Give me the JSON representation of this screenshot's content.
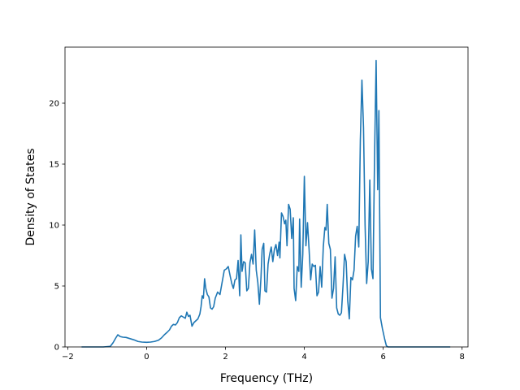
{
  "chart_data": {
    "type": "line",
    "title": "",
    "xlabel": "Frequency (THz)",
    "ylabel": "Density of States",
    "xlim": [
      -2.07,
      8.15
    ],
    "ylim": [
      0,
      24.6
    ],
    "xticks": [
      -2,
      0,
      2,
      4,
      6,
      8
    ],
    "yticks": [
      0,
      5,
      10,
      15,
      20
    ],
    "grid": false,
    "legend": "none",
    "series": [
      {
        "color": "#1f77b4",
        "points": [
          [
            -1.65,
            0.0
          ],
          [
            -1.1,
            0.0
          ],
          [
            -0.92,
            0.05
          ],
          [
            -0.85,
            0.35
          ],
          [
            -0.78,
            0.75
          ],
          [
            -0.73,
            1.0
          ],
          [
            -0.67,
            0.85
          ],
          [
            -0.6,
            0.8
          ],
          [
            -0.52,
            0.78
          ],
          [
            -0.42,
            0.68
          ],
          [
            -0.32,
            0.58
          ],
          [
            -0.22,
            0.45
          ],
          [
            -0.12,
            0.4
          ],
          [
            0.0,
            0.38
          ],
          [
            0.1,
            0.4
          ],
          [
            0.2,
            0.45
          ],
          [
            0.3,
            0.55
          ],
          [
            0.38,
            0.75
          ],
          [
            0.45,
            1.0
          ],
          [
            0.52,
            1.2
          ],
          [
            0.58,
            1.4
          ],
          [
            0.63,
            1.7
          ],
          [
            0.68,
            1.85
          ],
          [
            0.73,
            1.8
          ],
          [
            0.78,
            2.0
          ],
          [
            0.83,
            2.4
          ],
          [
            0.88,
            2.55
          ],
          [
            0.93,
            2.45
          ],
          [
            0.98,
            2.35
          ],
          [
            1.02,
            2.85
          ],
          [
            1.06,
            2.5
          ],
          [
            1.1,
            2.6
          ],
          [
            1.15,
            1.7
          ],
          [
            1.2,
            2.0
          ],
          [
            1.25,
            2.15
          ],
          [
            1.3,
            2.3
          ],
          [
            1.35,
            2.7
          ],
          [
            1.38,
            3.3
          ],
          [
            1.41,
            4.2
          ],
          [
            1.44,
            4.0
          ],
          [
            1.47,
            5.6
          ],
          [
            1.5,
            4.8
          ],
          [
            1.54,
            4.3
          ],
          [
            1.58,
            4.1
          ],
          [
            1.62,
            3.2
          ],
          [
            1.66,
            3.1
          ],
          [
            1.7,
            3.3
          ],
          [
            1.74,
            4.0
          ],
          [
            1.8,
            4.5
          ],
          [
            1.86,
            4.3
          ],
          [
            1.92,
            5.4
          ],
          [
            1.97,
            6.3
          ],
          [
            2.02,
            6.4
          ],
          [
            2.07,
            6.6
          ],
          [
            2.12,
            5.8
          ],
          [
            2.16,
            5.2
          ],
          [
            2.2,
            4.8
          ],
          [
            2.24,
            5.5
          ],
          [
            2.28,
            5.6
          ],
          [
            2.32,
            7.1
          ],
          [
            2.36,
            4.2
          ],
          [
            2.39,
            9.2
          ],
          [
            2.42,
            6.2
          ],
          [
            2.46,
            7.0
          ],
          [
            2.5,
            6.9
          ],
          [
            2.54,
            4.6
          ],
          [
            2.58,
            4.8
          ],
          [
            2.62,
            6.9
          ],
          [
            2.66,
            7.6
          ],
          [
            2.7,
            6.8
          ],
          [
            2.74,
            9.6
          ],
          [
            2.78,
            6.3
          ],
          [
            2.82,
            5.3
          ],
          [
            2.86,
            3.5
          ],
          [
            2.9,
            5.7
          ],
          [
            2.93,
            8.0
          ],
          [
            2.97,
            8.5
          ],
          [
            3.0,
            4.6
          ],
          [
            3.04,
            4.5
          ],
          [
            3.08,
            6.8
          ],
          [
            3.12,
            7.6
          ],
          [
            3.16,
            8.2
          ],
          [
            3.2,
            7.0
          ],
          [
            3.24,
            8.0
          ],
          [
            3.28,
            8.4
          ],
          [
            3.32,
            7.5
          ],
          [
            3.36,
            8.6
          ],
          [
            3.38,
            7.3
          ],
          [
            3.42,
            11.0
          ],
          [
            3.46,
            10.7
          ],
          [
            3.5,
            10.1
          ],
          [
            3.53,
            10.4
          ],
          [
            3.56,
            8.3
          ],
          [
            3.6,
            11.7
          ],
          [
            3.64,
            11.3
          ],
          [
            3.68,
            8.9
          ],
          [
            3.72,
            10.6
          ],
          [
            3.74,
            4.8
          ],
          [
            3.78,
            3.8
          ],
          [
            3.82,
            6.6
          ],
          [
            3.86,
            6.2
          ],
          [
            3.88,
            10.5
          ],
          [
            3.92,
            4.9
          ],
          [
            3.96,
            7.6
          ],
          [
            4.0,
            14.0
          ],
          [
            4.04,
            8.3
          ],
          [
            4.08,
            10.2
          ],
          [
            4.12,
            8.0
          ],
          [
            4.16,
            5.5
          ],
          [
            4.2,
            6.8
          ],
          [
            4.24,
            6.6
          ],
          [
            4.28,
            6.7
          ],
          [
            4.32,
            4.2
          ],
          [
            4.36,
            4.5
          ],
          [
            4.4,
            6.6
          ],
          [
            4.44,
            4.9
          ],
          [
            4.48,
            8.2
          ],
          [
            4.52,
            9.8
          ],
          [
            4.55,
            9.6
          ],
          [
            4.58,
            11.7
          ],
          [
            4.62,
            8.5
          ],
          [
            4.66,
            8.0
          ],
          [
            4.7,
            4.0
          ],
          [
            4.74,
            4.8
          ],
          [
            4.78,
            7.4
          ],
          [
            4.82,
            3.2
          ],
          [
            4.86,
            2.7
          ],
          [
            4.9,
            2.6
          ],
          [
            4.94,
            2.8
          ],
          [
            4.98,
            5.0
          ],
          [
            5.02,
            7.6
          ],
          [
            5.06,
            7.0
          ],
          [
            5.1,
            3.8
          ],
          [
            5.14,
            2.3
          ],
          [
            5.18,
            5.7
          ],
          [
            5.22,
            5.5
          ],
          [
            5.26,
            6.3
          ],
          [
            5.3,
            9.1
          ],
          [
            5.34,
            9.9
          ],
          [
            5.38,
            8.2
          ],
          [
            5.42,
            17.0
          ],
          [
            5.46,
            21.9
          ],
          [
            5.5,
            18.0
          ],
          [
            5.54,
            10.0
          ],
          [
            5.58,
            5.2
          ],
          [
            5.62,
            7.0
          ],
          [
            5.66,
            13.7
          ],
          [
            5.7,
            6.4
          ],
          [
            5.74,
            5.6
          ],
          [
            5.78,
            15.5
          ],
          [
            5.82,
            23.5
          ],
          [
            5.86,
            12.9
          ],
          [
            5.89,
            19.4
          ],
          [
            5.93,
            2.4
          ],
          [
            5.98,
            1.5
          ],
          [
            6.04,
            0.6
          ],
          [
            6.08,
            0.1
          ],
          [
            6.12,
            0.0
          ],
          [
            6.5,
            0.0
          ],
          [
            7.0,
            0.0
          ],
          [
            7.7,
            0.0
          ]
        ]
      }
    ]
  }
}
